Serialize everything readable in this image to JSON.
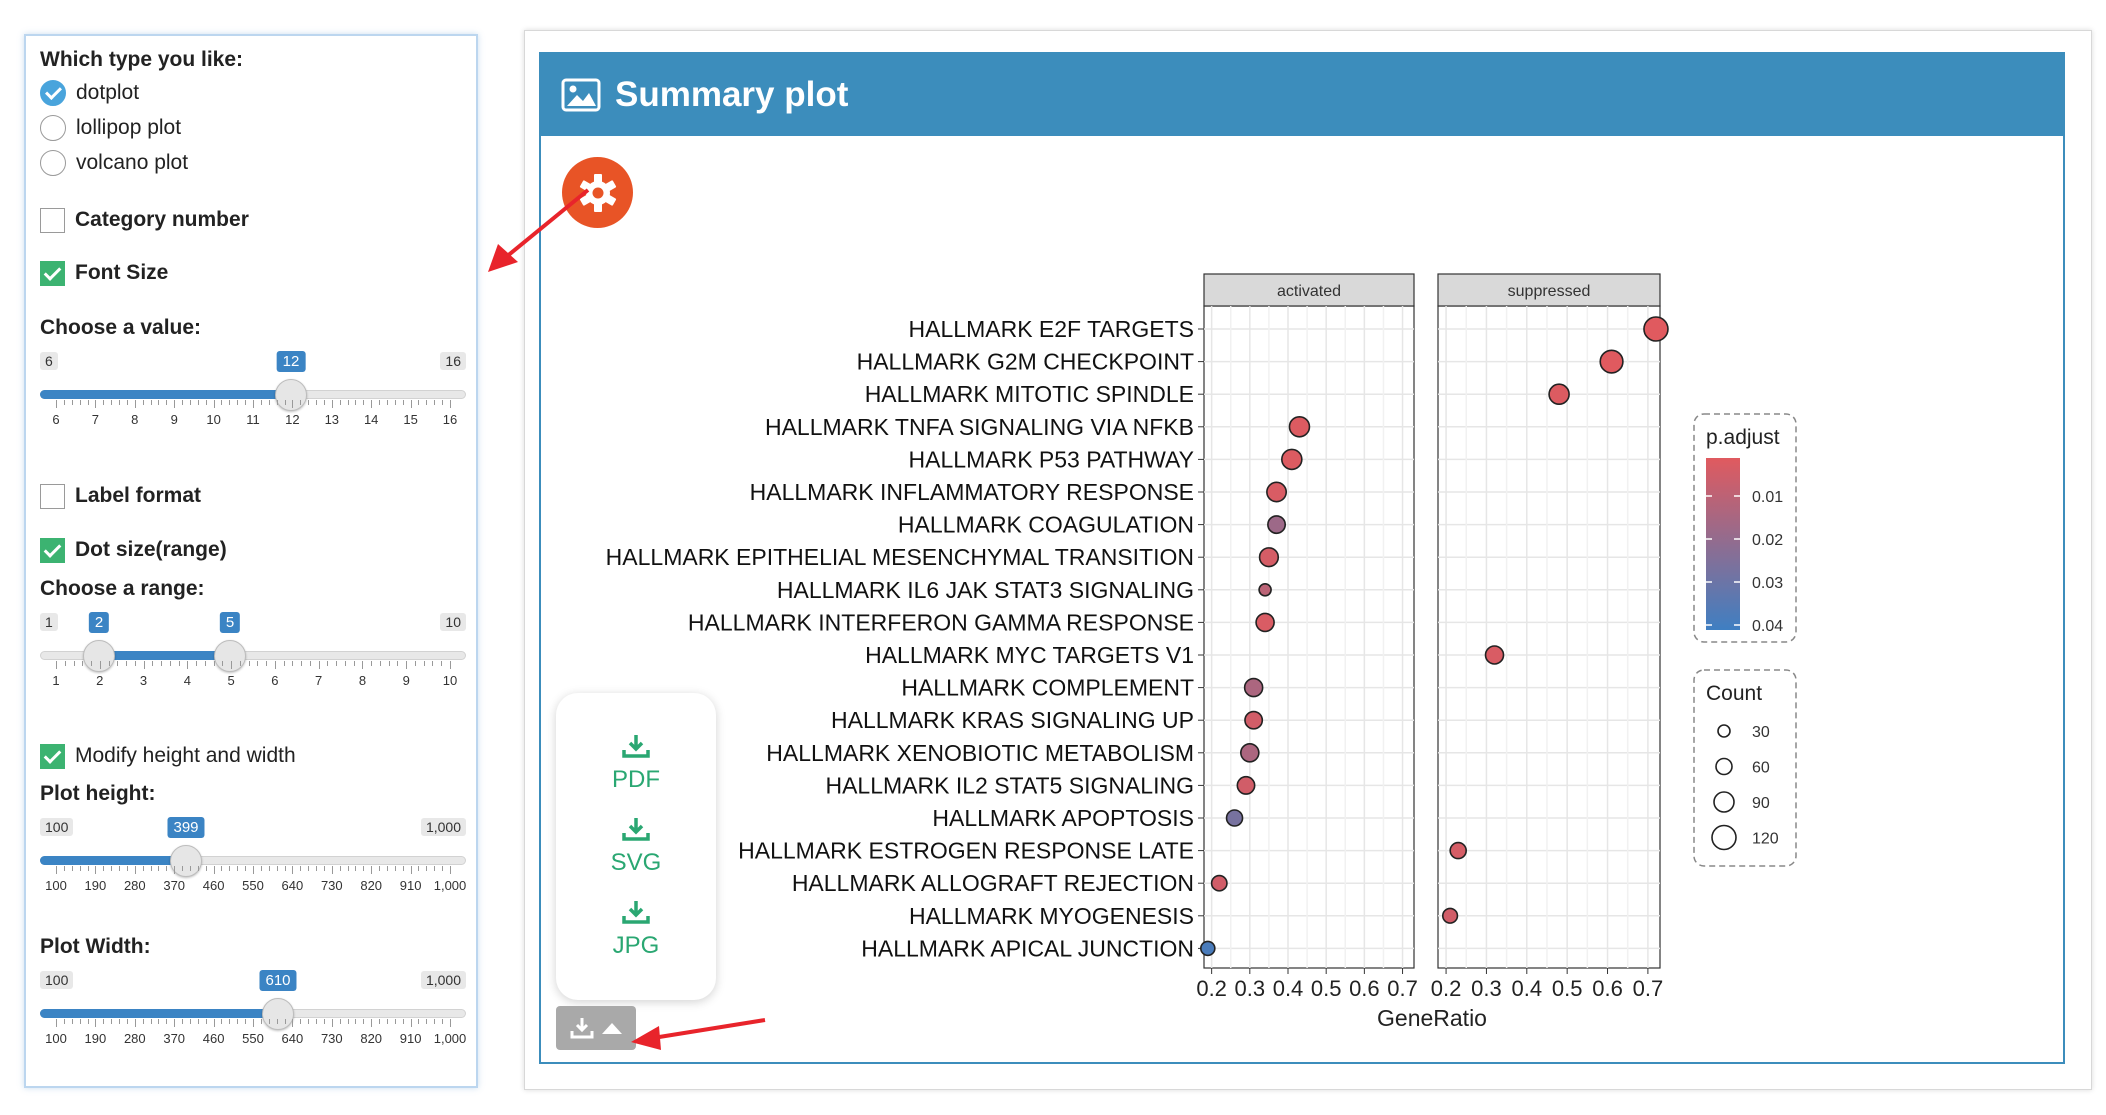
{
  "sidebar": {
    "type_label": "Which type you like:",
    "plot_types": [
      {
        "label": "dotplot",
        "selected": true
      },
      {
        "label": "lollipop plot",
        "selected": false
      },
      {
        "label": "volcano plot",
        "selected": false
      }
    ],
    "category_number": {
      "label": "Category number",
      "checked": false
    },
    "font_size": {
      "label": "Font Size",
      "checked": true
    },
    "font_value": {
      "label": "Choose a value:",
      "min": "6",
      "max": "16",
      "value": "12",
      "ticks": [
        "6",
        "7",
        "8",
        "9",
        "10",
        "11",
        "12",
        "13",
        "14",
        "15",
        "16"
      ]
    },
    "label_format": {
      "label": "Label format",
      "checked": false
    },
    "dot_size": {
      "label": "Dot size(range)",
      "checked": true
    },
    "dot_range": {
      "label": "Choose a range:",
      "min": "1",
      "max": "10",
      "low": "2",
      "high": "5",
      "ticks": [
        "1",
        "2",
        "3",
        "4",
        "5",
        "6",
        "7",
        "8",
        "9",
        "10"
      ]
    },
    "modify_hw": {
      "label": "Modify height and width",
      "checked": true
    },
    "plot_height": {
      "label": "Plot height:",
      "min": "100",
      "max": "1,000",
      "value": "399",
      "ticks": [
        "100",
        "190",
        "280",
        "370",
        "460",
        "550",
        "640",
        "730",
        "820",
        "910",
        "1,000"
      ]
    },
    "plot_width": {
      "label": "Plot Width:",
      "min": "100",
      "max": "1,000",
      "value": "610",
      "ticks": [
        "100",
        "190",
        "280",
        "370",
        "460",
        "550",
        "640",
        "730",
        "820",
        "910",
        "1,000"
      ]
    }
  },
  "panel": {
    "title": "Summary plot",
    "icons": {
      "title": "image-icon",
      "settings": "gear-icon",
      "download": "download-icon"
    }
  },
  "downloads": {
    "items": [
      "PDF",
      "SVG",
      "JPG"
    ]
  },
  "colors": {
    "header": "#3c8dbc",
    "gear": "#e85426",
    "download": "#2aa772",
    "p_low": "#e05a5f",
    "p_high": "#3f7fc2"
  },
  "chart_data": {
    "type": "scatter",
    "facets": [
      "activated",
      "suppressed"
    ],
    "categories": [
      "HALLMARK E2F TARGETS",
      "HALLMARK G2M CHECKPOINT",
      "HALLMARK MITOTIC SPINDLE",
      "HALLMARK TNFA SIGNALING VIA NFKB",
      "HALLMARK P53 PATHWAY",
      "HALLMARK INFLAMMATORY RESPONSE",
      "HALLMARK COAGULATION",
      "HALLMARK EPITHELIAL MESENCHYMAL TRANSITION",
      "HALLMARK IL6 JAK STAT3 SIGNALING",
      "HALLMARK INTERFERON GAMMA RESPONSE",
      "HALLMARK MYC TARGETS V1",
      "HALLMARK COMPLEMENT",
      "HALLMARK KRAS SIGNALING UP",
      "HALLMARK XENOBIOTIC METABOLISM",
      "HALLMARK IL2 STAT5 SIGNALING",
      "HALLMARK APOPTOSIS",
      "HALLMARK ESTROGEN RESPONSE LATE",
      "HALLMARK ALLOGRAFT REJECTION",
      "HALLMARK MYOGENESIS",
      "HALLMARK APICAL JUNCTION"
    ],
    "points": [
      {
        "facet": "suppressed",
        "category": "HALLMARK E2F TARGETS",
        "x": 0.72,
        "count": 120,
        "p": 0.002
      },
      {
        "facet": "suppressed",
        "category": "HALLMARK G2M CHECKPOINT",
        "x": 0.61,
        "count": 110,
        "p": 0.002
      },
      {
        "facet": "suppressed",
        "category": "HALLMARK MITOTIC SPINDLE",
        "x": 0.48,
        "count": 90,
        "p": 0.003
      },
      {
        "facet": "activated",
        "category": "HALLMARK TNFA SIGNALING VIA NFKB",
        "x": 0.43,
        "count": 90,
        "p": 0.003
      },
      {
        "facet": "activated",
        "category": "HALLMARK P53 PATHWAY",
        "x": 0.41,
        "count": 90,
        "p": 0.003
      },
      {
        "facet": "activated",
        "category": "HALLMARK INFLAMMATORY RESPONSE",
        "x": 0.37,
        "count": 85,
        "p": 0.004
      },
      {
        "facet": "activated",
        "category": "HALLMARK COAGULATION",
        "x": 0.37,
        "count": 70,
        "p": 0.02
      },
      {
        "facet": "activated",
        "category": "HALLMARK EPITHELIAL MESENCHYMAL TRANSITION",
        "x": 0.35,
        "count": 80,
        "p": 0.005
      },
      {
        "facet": "activated",
        "category": "HALLMARK IL6 JAK STAT3 SIGNALING",
        "x": 0.34,
        "count": 30,
        "p": 0.012
      },
      {
        "facet": "activated",
        "category": "HALLMARK INTERFERON GAMMA RESPONSE",
        "x": 0.34,
        "count": 75,
        "p": 0.004
      },
      {
        "facet": "suppressed",
        "category": "HALLMARK MYC TARGETS V1",
        "x": 0.32,
        "count": 75,
        "p": 0.004
      },
      {
        "facet": "activated",
        "category": "HALLMARK COMPLEMENT",
        "x": 0.31,
        "count": 75,
        "p": 0.016
      },
      {
        "facet": "activated",
        "category": "HALLMARK KRAS SIGNALING UP",
        "x": 0.31,
        "count": 70,
        "p": 0.006
      },
      {
        "facet": "activated",
        "category": "HALLMARK XENOBIOTIC METABOLISM",
        "x": 0.3,
        "count": 75,
        "p": 0.016
      },
      {
        "facet": "activated",
        "category": "HALLMARK IL2 STAT5 SIGNALING",
        "x": 0.29,
        "count": 70,
        "p": 0.006
      },
      {
        "facet": "activated",
        "category": "HALLMARK APOPTOSIS",
        "x": 0.26,
        "count": 60,
        "p": 0.03
      },
      {
        "facet": "suppressed",
        "category": "HALLMARK ESTROGEN RESPONSE LATE",
        "x": 0.23,
        "count": 60,
        "p": 0.005
      },
      {
        "facet": "activated",
        "category": "HALLMARK ALLOGRAFT REJECTION",
        "x": 0.22,
        "count": 55,
        "p": 0.006
      },
      {
        "facet": "suppressed",
        "category": "HALLMARK MYOGENESIS",
        "x": 0.21,
        "count": 50,
        "p": 0.006
      },
      {
        "facet": "activated",
        "category": "HALLMARK APICAL JUNCTION",
        "x": 0.19,
        "count": 45,
        "p": 0.042
      }
    ],
    "xlabel": "GeneRatio",
    "xlim": [
      0.18,
      0.73
    ],
    "xticks": [
      "0.2",
      "0.3",
      "0.4",
      "0.5",
      "0.6",
      "0.7"
    ],
    "grid": true,
    "legend_placement": "right",
    "color_legend": {
      "title": "p.adjust",
      "ticks": [
        "0.01",
        "0.02",
        "0.03",
        "0.04"
      ]
    },
    "size_legend": {
      "title": "Count",
      "ticks": [
        "30",
        "60",
        "90",
        "120"
      ]
    }
  }
}
